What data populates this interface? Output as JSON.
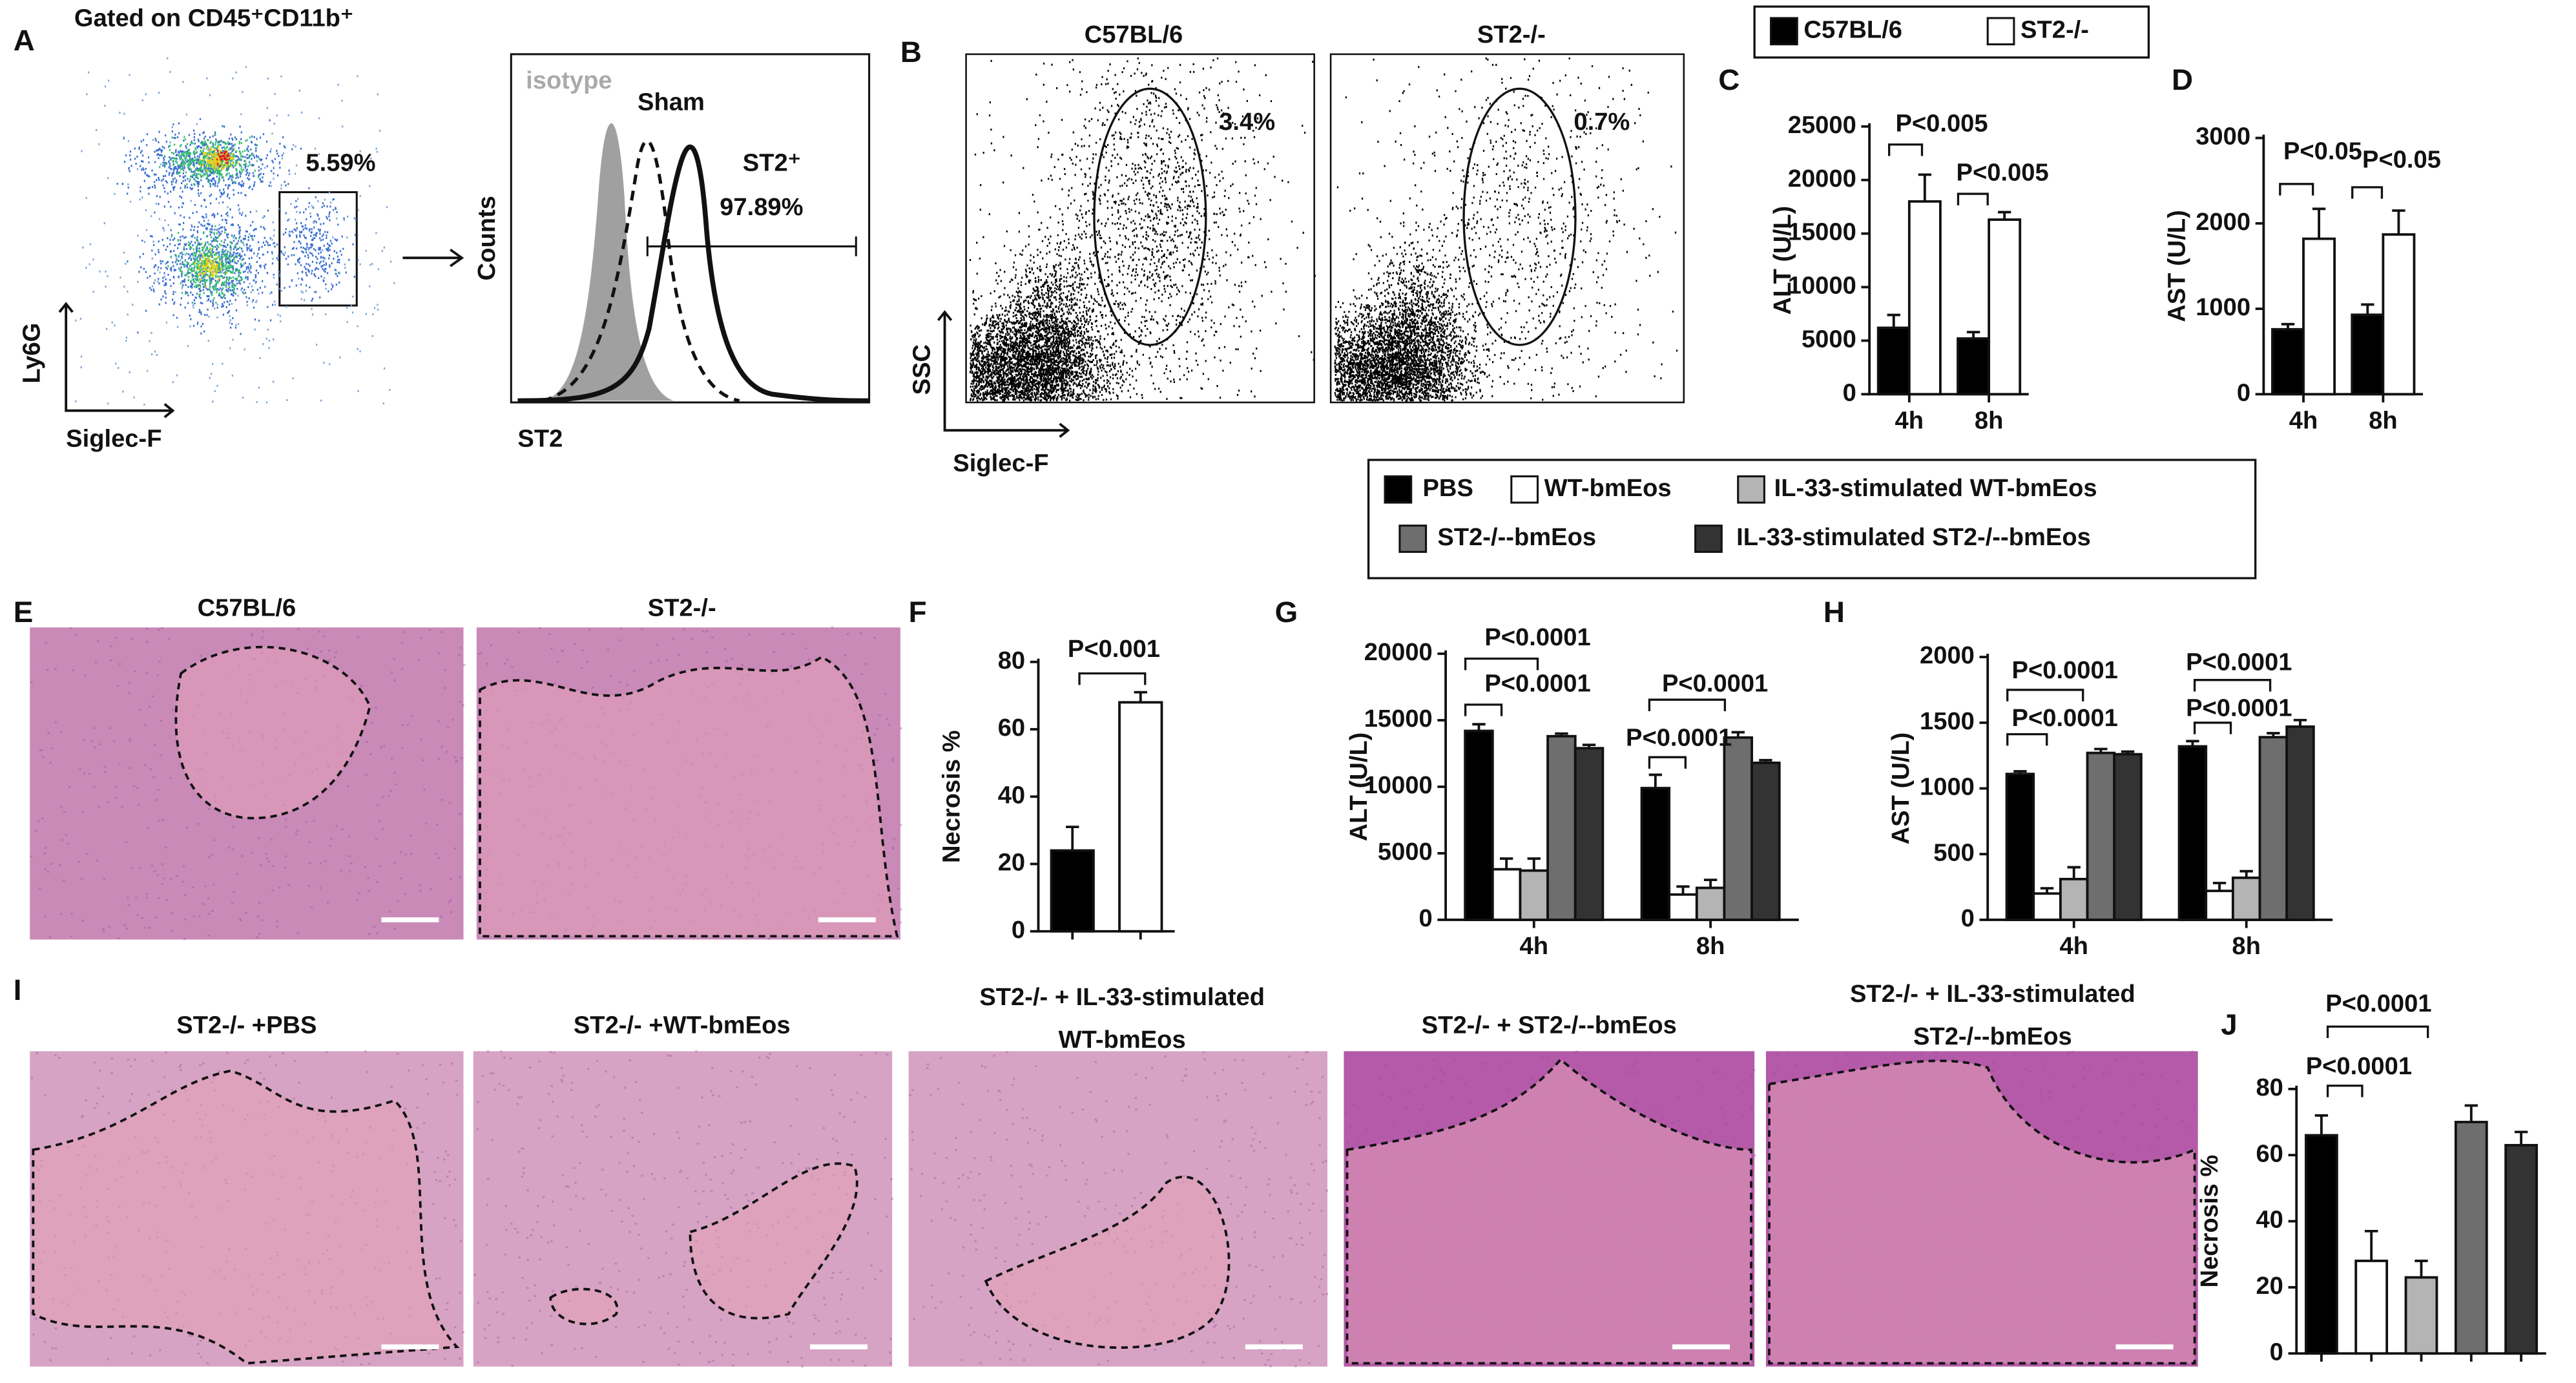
{
  "figure": {
    "letters": {
      "A": "A",
      "B": "B",
      "E": "E",
      "I": "I"
    },
    "panel_a": {
      "gate_title": "Gated on CD45⁺CD11b⁺",
      "gate_percent": "5.59%",
      "y_label": "Ly6G",
      "x_label": "Siglec-F",
      "hist_y_label": "Counts",
      "hist_x_label": "ST2",
      "isotype": "isotype",
      "sham": "Sham",
      "positive": "ST2⁺",
      "positive_percent": "97.89%"
    },
    "panel_b": {
      "titles": [
        "C57BL/6",
        "ST2-/-"
      ],
      "percents": [
        "3.4%",
        "0.7%"
      ],
      "y_label": "SSC",
      "x_label": "Siglec-F"
    },
    "panel_e": {
      "titles": [
        "C57BL/6",
        "ST2-/-"
      ]
    },
    "panel_i": {
      "captions": [
        [
          "ST2-/- +PBS"
        ],
        [
          "ST2-/- +WT-bmEos"
        ],
        [
          "ST2-/- + IL-33-stimulated",
          "WT-bmEos"
        ],
        [
          "ST2-/- + ST2-/--bmEos"
        ],
        [
          "ST2-/- + IL-33-stimulated",
          "ST2-/--bmEos"
        ]
      ]
    }
  },
  "chart_data": [
    {
      "type": "bar",
      "panel": "C",
      "ylabel": "ALT (U/L)",
      "categories": [
        "4h",
        "8h"
      ],
      "series": [
        {
          "name": "C57BL/6",
          "color": "#000000",
          "values": [
            6200,
            5200
          ],
          "errors": [
            1200,
            600
          ]
        },
        {
          "name": "ST2-/-",
          "color": "#ffffff",
          "values": [
            18000,
            16300
          ],
          "errors": [
            2500,
            700
          ]
        }
      ],
      "ylim": [
        0,
        25000
      ],
      "yticks": [
        0,
        5000,
        10000,
        15000,
        20000,
        25000
      ],
      "annotations": [
        "P<0.005",
        "P<0.005"
      ]
    },
    {
      "type": "bar",
      "panel": "D",
      "ylabel": "AST (U/L)",
      "categories": [
        "4h",
        "8h"
      ],
      "series": [
        {
          "name": "C57BL/6",
          "color": "#000000",
          "values": [
            760,
            930
          ],
          "errors": [
            60,
            120
          ]
        },
        {
          "name": "ST2-/-",
          "color": "#ffffff",
          "values": [
            1820,
            1870
          ],
          "errors": [
            350,
            280
          ]
        }
      ],
      "ylim": [
        0,
        3000
      ],
      "yticks": [
        0,
        1000,
        2000,
        3000
      ],
      "annotations": [
        "P<0.05",
        "P<0.05"
      ]
    },
    {
      "type": "bar",
      "panel": "F",
      "ylabel": "Necrosis %",
      "categories": [
        null,
        null
      ],
      "values": [
        24,
        68
      ],
      "errors": [
        7,
        3
      ],
      "colors": [
        "#000000",
        "#ffffff"
      ],
      "ylim": [
        0,
        80
      ],
      "yticks": [
        0,
        20,
        40,
        60,
        80
      ],
      "annotations": [
        "P<0.001"
      ]
    },
    {
      "type": "bar",
      "panel": "G",
      "ylabel": "ALT (U/L)",
      "categories": [
        "4h",
        "8h"
      ],
      "series": [
        {
          "name": "PBS",
          "color": "#000000",
          "values": [
            14200,
            9900
          ],
          "errors": [
            500,
            1000
          ]
        },
        {
          "name": "WT-bmEos",
          "color": "#ffffff",
          "values": [
            3800,
            1900
          ],
          "errors": [
            800,
            600
          ]
        },
        {
          "name": "IL-33-stimulated WT-bmEos",
          "color": "#b4b4b4",
          "values": [
            3700,
            2400
          ],
          "errors": [
            900,
            600
          ]
        },
        {
          "name": "ST2-/--bmEos",
          "color": "#6e6e6e",
          "values": [
            13800,
            13700
          ],
          "errors": [
            200,
            400
          ]
        },
        {
          "name": "IL-33-stimulated ST2-/--bmEos",
          "color": "#333333",
          "values": [
            12900,
            11800
          ],
          "errors": [
            250,
            200
          ]
        }
      ],
      "ylim": [
        0,
        20000
      ],
      "yticks": [
        0,
        5000,
        10000,
        15000,
        20000
      ],
      "annotations": [
        "P<0.0001",
        "P<0.0001",
        "P<0.0001",
        "P<0.0001"
      ]
    },
    {
      "type": "bar",
      "panel": "H",
      "ylabel": "AST (U/L)",
      "categories": [
        "4h",
        "8h"
      ],
      "series": [
        {
          "name": "PBS",
          "color": "#000000",
          "values": [
            1110,
            1320
          ],
          "errors": [
            20,
            40
          ]
        },
        {
          "name": "WT-bmEos",
          "color": "#ffffff",
          "values": [
            200,
            220
          ],
          "errors": [
            40,
            60
          ]
        },
        {
          "name": "IL-33-stimulated WT-bmEos",
          "color": "#b4b4b4",
          "values": [
            310,
            320
          ],
          "errors": [
            90,
            50
          ]
        },
        {
          "name": "ST2-/--bmEos",
          "color": "#6e6e6e",
          "values": [
            1270,
            1390
          ],
          "errors": [
            30,
            30
          ]
        },
        {
          "name": "IL-33-stimulated ST2-/--bmEos",
          "color": "#333333",
          "values": [
            1260,
            1470
          ],
          "errors": [
            20,
            50
          ]
        }
      ],
      "ylim": [
        0,
        2000
      ],
      "yticks": [
        0,
        500,
        1000,
        1500,
        2000
      ],
      "annotations": [
        "P<0.0001",
        "P<0.0001",
        "P<0.0001",
        "P<0.0001"
      ]
    },
    {
      "type": "bar",
      "panel": "J",
      "ylabel": "Necrosis %",
      "categories": [
        null,
        null,
        null,
        null,
        null
      ],
      "values": [
        66,
        28,
        23,
        70,
        63
      ],
      "errors": [
        6,
        9,
        5,
        5,
        4
      ],
      "colors": [
        "#000000",
        "#ffffff",
        "#b4b4b4",
        "#6e6e6e",
        "#333333"
      ],
      "ylim": [
        0,
        80
      ],
      "yticks": [
        0,
        20,
        40,
        60,
        80
      ],
      "annotations": [
        "P<0.0001",
        "P<0.0001"
      ]
    }
  ]
}
